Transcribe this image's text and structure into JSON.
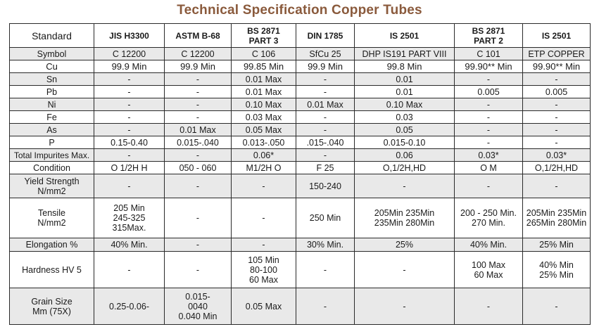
{
  "title": "Technical Specification Copper Tubes",
  "headers": [
    "Standard",
    "JIS H3300",
    "ASTM B-68",
    "BS 2871\nPART 3",
    "DIN 1785",
    "IS 2501",
    "BS 2871\nPART 2",
    "IS 2501"
  ],
  "rows": [
    {
      "label": "Symbol",
      "cells": [
        "C 12200",
        "C 12200",
        "C 106",
        "SfCu 25",
        "DHP IS191 PART VIII",
        "C 101",
        "ETP COPPER"
      ]
    },
    {
      "label": "Cu",
      "cells": [
        "99.9 Min",
        "99.9 Min",
        "99.85 Min",
        "99.9 Min",
        "99.8 Min",
        "99.90** Min",
        "99.90** Min"
      ]
    },
    {
      "label": "Sn",
      "cells": [
        "-",
        "-",
        "0.01 Max",
        "-",
        "0.01",
        "-",
        "-"
      ]
    },
    {
      "label": "Pb",
      "cells": [
        "-",
        "-",
        "0.01 Max",
        "-",
        "0.01",
        "0.005",
        "0.005"
      ]
    },
    {
      "label": "Ni",
      "cells": [
        "-",
        "-",
        "0.10 Max",
        "0.01 Max",
        "0.10 Max",
        "-",
        "-"
      ]
    },
    {
      "label": "Fe",
      "cells": [
        "-",
        "-",
        "0.03 Max",
        "-",
        "0.03",
        "-",
        "-"
      ]
    },
    {
      "label": "As",
      "cells": [
        "-",
        "0.01 Max",
        "0.05 Max",
        "-",
        "0.05",
        "-",
        "-"
      ]
    },
    {
      "label": "P",
      "cells": [
        "0.15-0.40",
        "0.015-.040",
        "0.013-.050",
        ".015-.040",
        "0.015-0.10",
        "-",
        "-"
      ]
    },
    {
      "label": "Total Impurites Max.",
      "cells": [
        "-",
        "-",
        "0.06*",
        "-",
        "0.06",
        "0.03*",
        "0.03*"
      ]
    },
    {
      "label": "Condition",
      "cells": [
        "O 1/2H H",
        "050 - 060",
        "M1/2H O",
        "F 25",
        "O,1/2H,HD",
        "O M",
        "O,1/2H,HD"
      ]
    },
    {
      "label": "Yield Strength\nN/mm2",
      "cells": [
        "-",
        "-",
        "-",
        "150-240",
        "-",
        "-",
        "-"
      ]
    },
    {
      "label": "Tensile\nN/mm2",
      "cells": [
        "205 Min\n245-325\n315Max.",
        "-",
        "-",
        "250 Min",
        "205Min 235Min\n235Min 280Min",
        "200 - 250 Min.\n270 Min.",
        "205Min 235Min\n265Min 280Min"
      ]
    },
    {
      "label": "Elongation %",
      "cells": [
        "40% Min.",
        "-",
        "-",
        "30% Min.",
        "25%",
        "40% Min.",
        "25% Min"
      ]
    },
    {
      "label": "Hardness HV 5",
      "cells": [
        "-",
        "-",
        "105 Min\n80-100\n60 Max",
        "-",
        "-",
        "100 Max\n60 Max",
        "40% Min\n25% Min"
      ]
    },
    {
      "label": "Grain Size\nMm (75X)",
      "cells": [
        "0.25-0.06-",
        "0.015-\n0040\n0.040 Min",
        "0.05 Max",
        "-",
        "-",
        "-",
        "-"
      ]
    }
  ]
}
